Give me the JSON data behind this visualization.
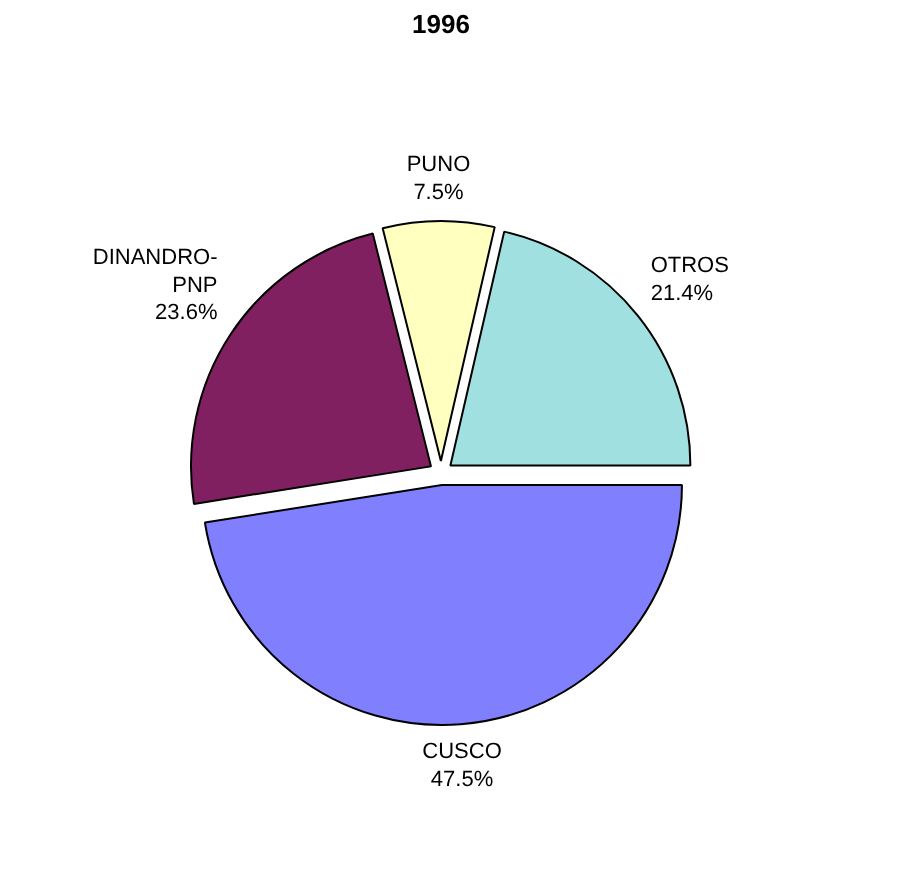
{
  "chart_data": {
    "type": "pie",
    "title": "1996",
    "categories": [
      "CUSCO",
      "DINANDRO-PNP",
      "PUNO",
      "OTROS"
    ],
    "values": [
      47.5,
      23.6,
      7.5,
      21.4
    ],
    "value_labels": [
      "47.5%",
      "23.6%",
      "7.5%",
      "21.4%"
    ],
    "colors": [
      "#8080ff",
      "#802060",
      "#ffffc0",
      "#a0e0e0"
    ]
  }
}
